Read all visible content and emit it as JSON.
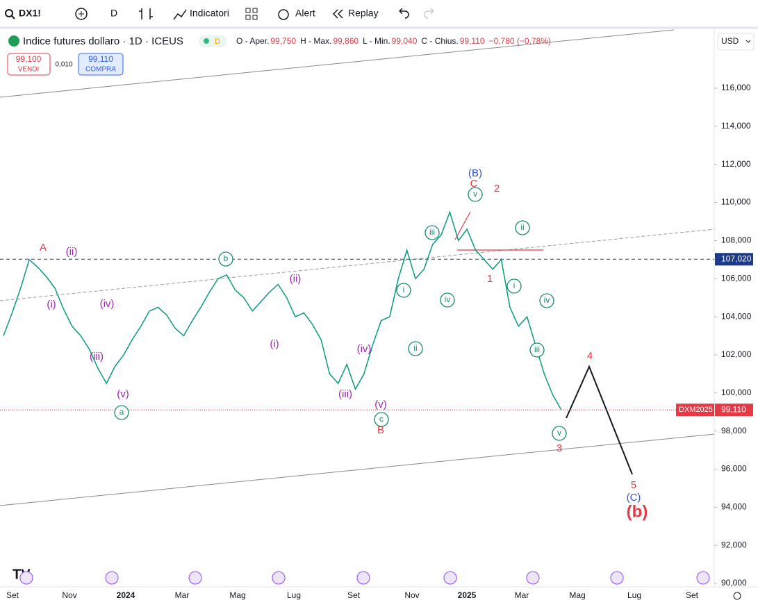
{
  "toolbar": {
    "symbol": "DX1!",
    "interval": "D",
    "indicators": "Indicatori",
    "alert": "Alert",
    "replay": "Replay"
  },
  "legend": {
    "title": "Indice futures dollaro · 1D · ICEUS",
    "badge": "D",
    "open_label": "O - Aper.",
    "open": "99,750",
    "high_label": "H - Max.",
    "high": "99,860",
    "low_label": "L - Min.",
    "low": "99,040",
    "close_label": "C - Chius.",
    "close": "99,110",
    "change": "−0,780 (−0,78%)"
  },
  "trade": {
    "sell_price": "99,100",
    "sell": "VENDI",
    "spread": "0,010",
    "buy_price": "99,110",
    "buy": "COMPRA"
  },
  "currency": "USD",
  "price_axis": {
    "ylim": [
      89.82,
      119.1
    ],
    "yticks": [
      {
        "value": 116,
        "label": "116,000"
      },
      {
        "value": 114,
        "label": "114,000"
      },
      {
        "value": 112,
        "label": "112,000"
      },
      {
        "value": 110,
        "label": "110,000"
      },
      {
        "value": 108,
        "label": "108,000"
      },
      {
        "value": 106,
        "label": "106,000"
      },
      {
        "value": 104,
        "label": "104,000"
      },
      {
        "value": 102,
        "label": "102,000"
      },
      {
        "value": 100,
        "label": "100,000"
      },
      {
        "value": 98,
        "label": "98,000"
      },
      {
        "value": 96,
        "label": "96,000"
      },
      {
        "value": 94,
        "label": "94,000"
      },
      {
        "value": 92,
        "label": "92,000"
      },
      {
        "value": 90,
        "label": "90,000"
      }
    ],
    "level": {
      "value": 107.02,
      "label": "107,020"
    },
    "last": {
      "value": 99.11,
      "label": "99,110",
      "tag": "DXM2025"
    }
  },
  "time_axis": [
    "Set",
    "Nov",
    "2024",
    "Mar",
    "Mag",
    "Lug",
    "Set",
    "Nov",
    "2025",
    "Mar",
    "Mag",
    "Lug",
    "Set"
  ],
  "price_series": [
    103,
    104.2,
    105.5,
    107,
    106.6,
    106.1,
    105.5,
    104.4,
    103.5,
    103,
    102.3,
    101.3,
    100.5,
    101.4,
    102,
    102.8,
    103.5,
    104.3,
    104.5,
    104.1,
    103.4,
    103,
    103.8,
    104.5,
    105.3,
    106,
    106.2,
    105.4,
    105,
    104.3,
    104.8,
    105.3,
    105.7,
    105,
    104,
    104.2,
    103.6,
    102.8,
    101,
    100.5,
    101.5,
    100.2,
    101,
    102.5,
    103.8,
    104,
    106,
    107.5,
    106,
    106.5,
    107.8,
    108.3,
    109.5,
    108,
    108.6,
    107.5,
    107,
    106.5,
    107,
    104.5,
    103.5,
    104,
    102.5,
    101,
    99.9,
    99.11
  ],
  "waves": [
    {
      "text": "A",
      "color": "#e53945"
    },
    {
      "text": "2",
      "color": "#e53945"
    },
    {
      "text": "1",
      "color": "#e53945"
    },
    {
      "text": "B",
      "color": "#e53945"
    },
    {
      "text": "4",
      "color": "#e53945"
    },
    {
      "text": "5",
      "color": "#e53945"
    },
    {
      "text": "3",
      "color": "#e53945"
    },
    {
      "text": "(b)",
      "color": "#e53945"
    },
    {
      "text": "(B)",
      "color": "#2f4fd0"
    },
    {
      "text": "(C)",
      "color": "#2f4fd0"
    },
    {
      "text": "C",
      "color": "#e53945"
    },
    {
      "text": "(ii)",
      "color": "#9c27b0"
    },
    {
      "text": "(i)",
      "color": "#9c27b0"
    },
    {
      "text": "(iv)",
      "color": "#9c27b0"
    },
    {
      "text": "(iii)",
      "color": "#9c27b0"
    },
    {
      "text": "(v)",
      "color": "#9c27b0"
    },
    {
      "text": "(ii)",
      "color": "#9c27b0"
    },
    {
      "text": "(i)",
      "color": "#9c27b0"
    },
    {
      "text": "(iv)",
      "color": "#9c27b0"
    },
    {
      "text": "(iii)",
      "color": "#9c27b0"
    },
    {
      "text": "(v)",
      "color": "#9c27b0"
    },
    {
      "text": "a",
      "color": "#138a72"
    },
    {
      "text": "b",
      "color": "#138a72"
    },
    {
      "text": "c",
      "color": "#138a72"
    },
    {
      "text": "i",
      "color": "#138a72"
    },
    {
      "text": "ii",
      "color": "#138a72"
    },
    {
      "text": "iii",
      "color": "#138a72"
    },
    {
      "text": "iv",
      "color": "#138a72"
    },
    {
      "text": "v",
      "color": "#138a72"
    },
    {
      "text": "ii",
      "color": "#138a72"
    },
    {
      "text": "i",
      "color": "#138a72"
    },
    {
      "text": "iv",
      "color": "#138a72"
    },
    {
      "text": "iii",
      "color": "#138a72"
    },
    {
      "text": "v",
      "color": "#138a72"
    }
  ]
}
